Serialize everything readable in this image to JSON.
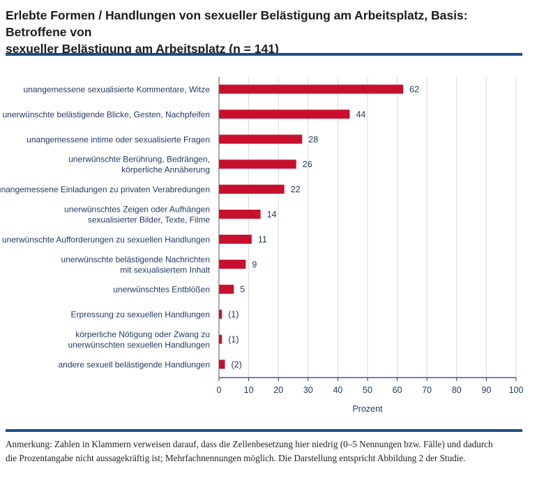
{
  "title_line1": "Erlebte Formen / Handlungen von sexueller Belästigung am Arbeitsplatz, Basis: Betroffene von",
  "title_line2": "sexueller Belästigung am Arbeitsplatz (n = 141)",
  "note_line1": "Anmerkung: Zahlen in Klammern verweisen darauf, dass die Zellenbesetzung hier niedrig (0–5 Nennungen bzw. Fälle) und dadurch",
  "note_line2": "die Prozentangabe nicht aussagekräftig ist; Mehrfachnennungen möglich. Die Darstellung entspricht Abbildung 2 der Studie.",
  "colors": {
    "bar": "#c8102e",
    "text": "#1f3b63",
    "rule": "#1f4e85",
    "grid": "#d9d9d9"
  },
  "chart_data": {
    "type": "bar",
    "orientation": "horizontal",
    "categories": [
      [
        "unangemessene sexualisierte Kommentare, Witze"
      ],
      [
        "unerwünschte belästigende Blicke, Gesten, Nachpfeifen"
      ],
      [
        "unangemessene intime oder sexualisierte Fragen"
      ],
      [
        "unerwünschte Berührung, Bedrängen,",
        "körperliche Annäherung"
      ],
      [
        "unangemessene Einladungen zu privaten Verabredungen"
      ],
      [
        "unerwünschtes Zeigen oder Aufhängen",
        "sexualisierter Bilder, Texte, Filme"
      ],
      [
        "unerwünschte Aufforderungen zu sexuellen Handlungen"
      ],
      [
        "unerwünschte belästigende Nachrichten",
        "mit sexualisiertem Inhalt"
      ],
      [
        "unerwünschtes Entblößen"
      ],
      [
        "Erpressung zu sexuellen Handlungen"
      ],
      [
        "körperliche Nötigung oder Zwang zu",
        "unerwünschten sexuellen Handlungen"
      ],
      [
        "andere sexuell belästigende Handlungen"
      ]
    ],
    "values": [
      62,
      44,
      28,
      26,
      22,
      14,
      11,
      9,
      5,
      1,
      1,
      2
    ],
    "value_labels": [
      "62",
      "44",
      "28",
      "26",
      "22",
      "14",
      "11",
      "9",
      "5",
      "(1)",
      "(1)",
      "(2)"
    ],
    "xlabel": "Prozent",
    "xlim": [
      0,
      100
    ],
    "xticks": [
      0,
      10,
      20,
      30,
      40,
      50,
      60,
      70,
      80,
      90,
      100
    ],
    "grid": true
  }
}
